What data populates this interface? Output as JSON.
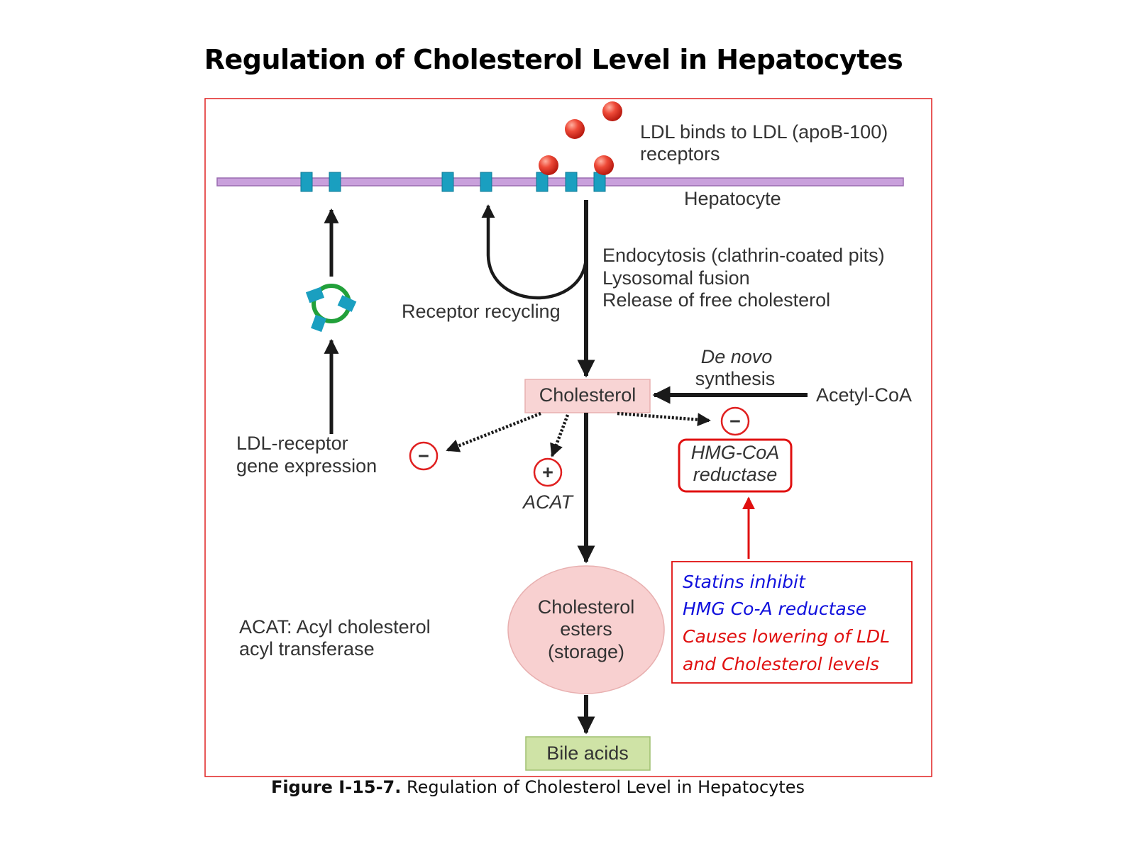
{
  "title": "Regulation of Cholesterol Level in Hepatocytes",
  "labels": {
    "ldl_binds_line1": "LDL binds to LDL (apoB-100)",
    "ldl_binds_line2": "receptors",
    "hepatocyte": "Hepatocyte",
    "endocytosis_line1": "Endocytosis (clathrin-coated pits)",
    "endocytosis_line2": "Lysosomal fusion",
    "endocytosis_line3": "Release of free cholesterol",
    "receptor_recycling": "Receptor recycling",
    "de_novo": "De novo",
    "synthesis": "synthesis",
    "acetyl_coa": "Acetyl-CoA",
    "cholesterol": "Cholesterol",
    "ldl_receptor_line1": "LDL-receptor",
    "ldl_receptor_line2": "gene expression",
    "acat": "ACAT",
    "hmg_coa_line1": "HMG-CoA",
    "hmg_coa_line2": "reductase",
    "esters_line1": "Cholesterol",
    "esters_line2": "esters",
    "esters_line3": "(storage)",
    "acat_def_line1": "ACAT: Acyl cholesterol",
    "acat_def_line2": "acyl transferase",
    "bile_acids": "Bile acids",
    "minus": "−",
    "plus": "+"
  },
  "statin_box": {
    "line1": "Statins inhibit",
    "line2": "HMG Co-A reductase",
    "line3": "Causes lowering of LDL",
    "line4": "and Cholesterol levels"
  },
  "caption": {
    "bold": "Figure I-15-7.",
    "text": " Regulation of Cholesterol Level in Hepatocytes"
  },
  "colors": {
    "membrane": "#c9a0dc",
    "receptor": "#1a9fc0",
    "ldl": "#e23a2a",
    "frame": "#e02020",
    "statin_blue": "#1010dd",
    "statin_red": "#e01010",
    "cholesterol_box": "#f8d4d4",
    "bile_box": "#cfe3a6",
    "esters_fill": "#f8d0d0"
  }
}
